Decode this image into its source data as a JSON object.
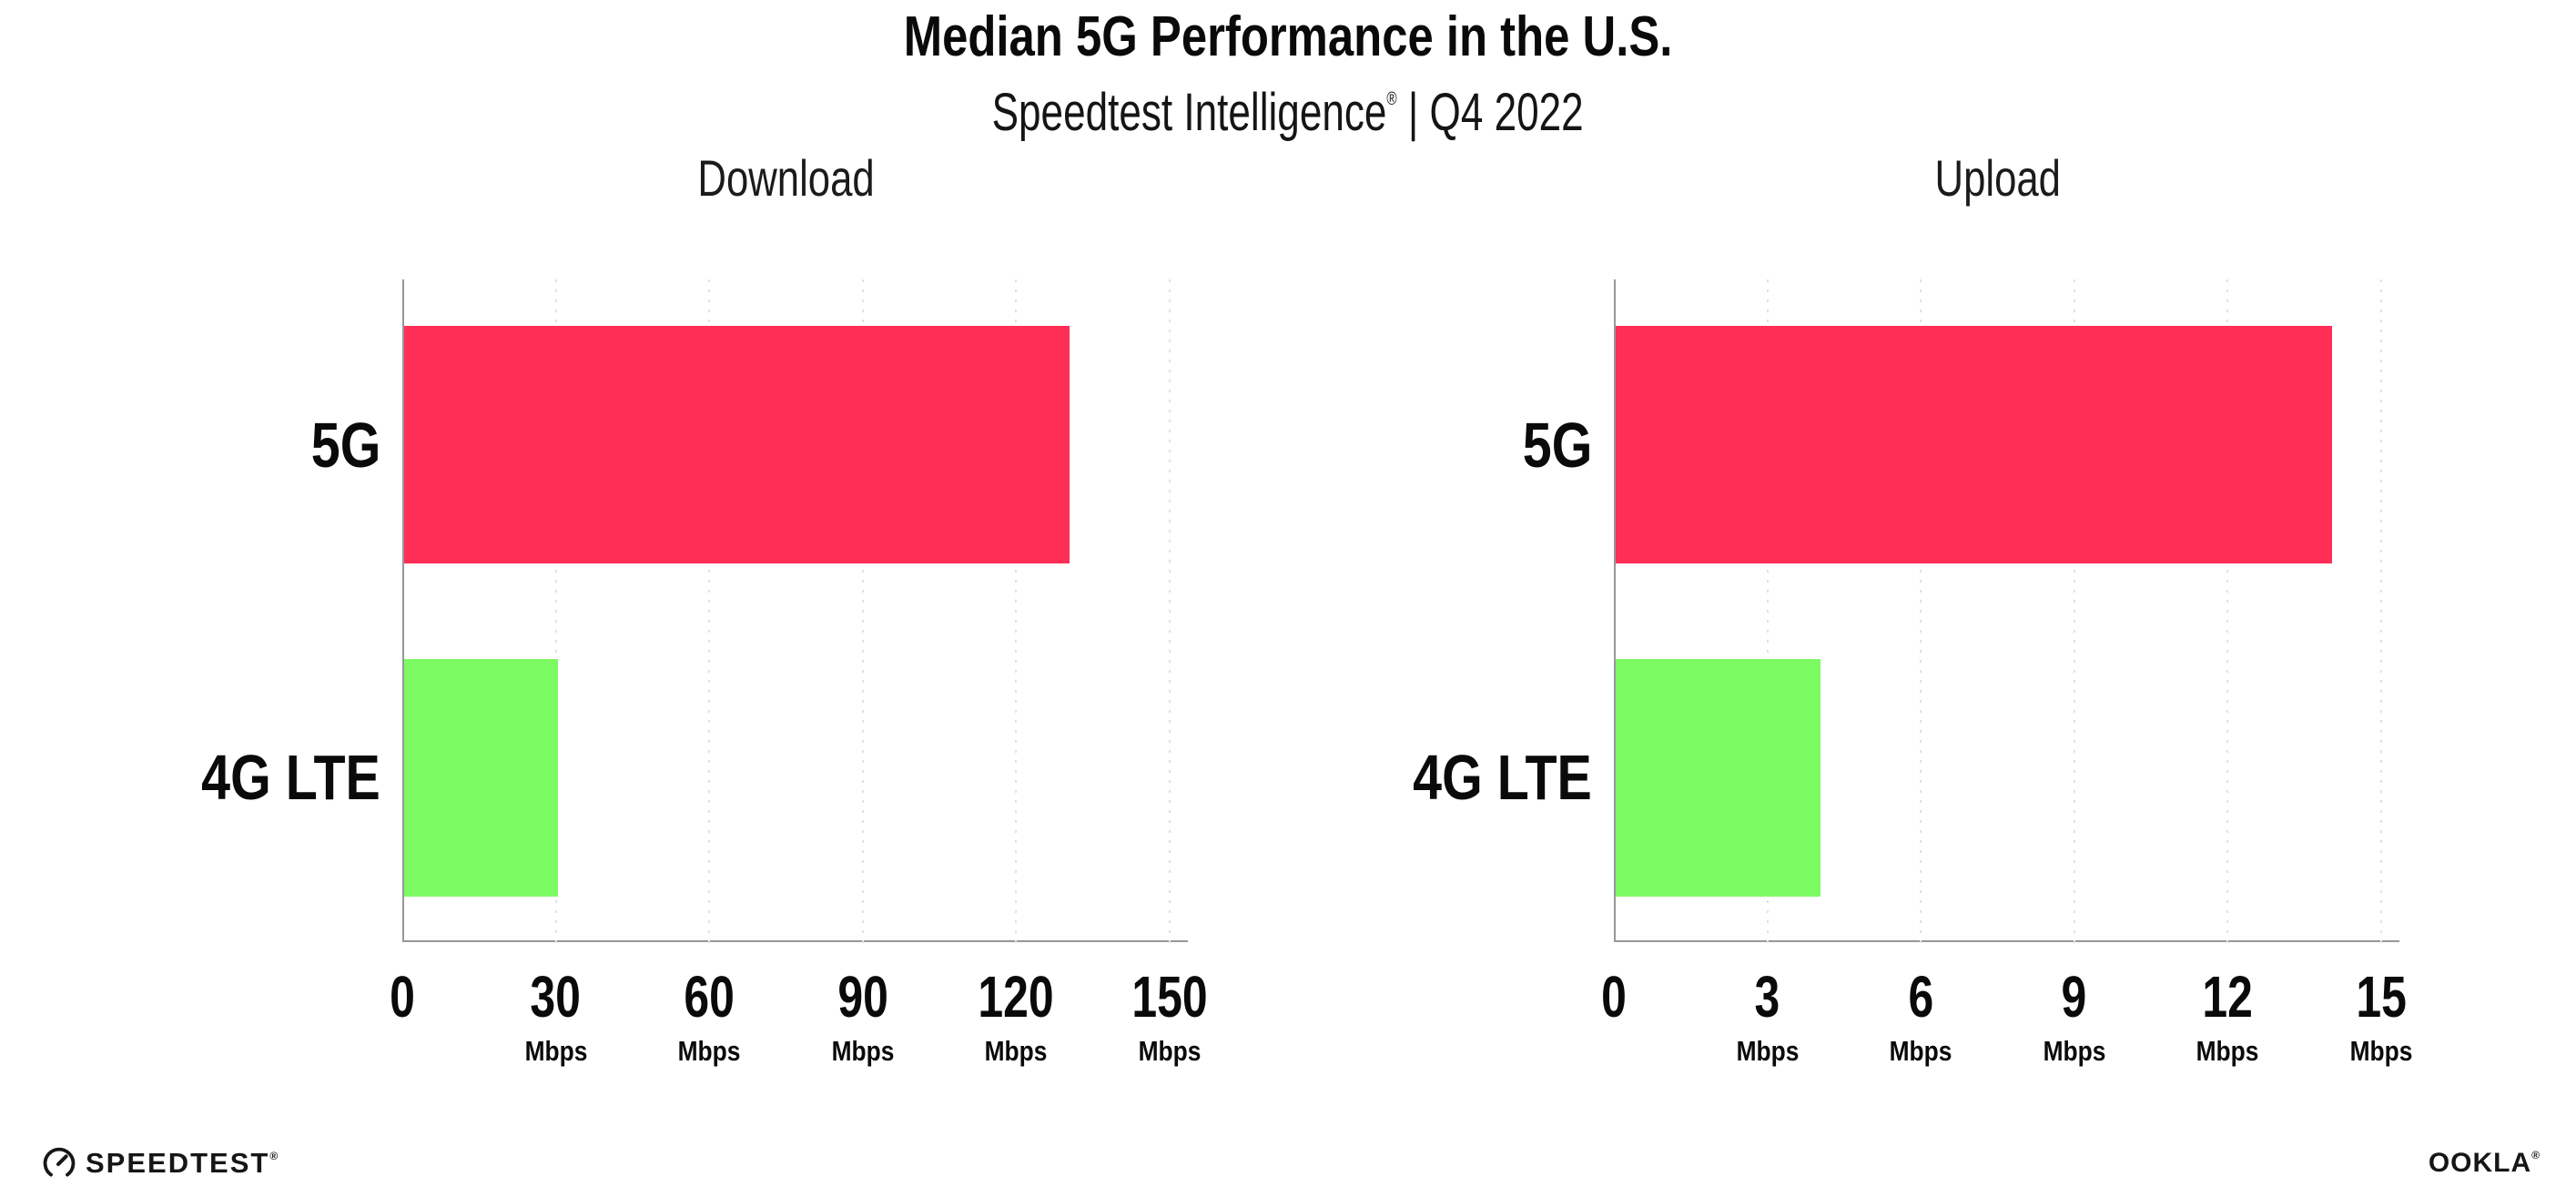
{
  "header": {
    "title": "Median 5G Performance in the U.S.",
    "subtitle": "Speedtest Intelligence",
    "subtitle_mark": "®",
    "subtitle_rest": " | Q4 2022"
  },
  "chart_data": [
    {
      "type": "bar",
      "orientation": "horizontal",
      "title": "Download",
      "categories": [
        "5G",
        "4G LTE"
      ],
      "values": [
        130,
        30
      ],
      "unit": "Mbps",
      "xlim": [
        0,
        150
      ],
      "xticks": [
        0,
        30,
        60,
        90,
        120,
        150
      ],
      "bar_colors": [
        "#FF2E56",
        "#7DFB63"
      ],
      "grid": "vertical-dotted",
      "legend": "none"
    },
    {
      "type": "bar",
      "orientation": "horizontal",
      "title": "Upload",
      "categories": [
        "5G",
        "4G LTE"
      ],
      "values": [
        14,
        4
      ],
      "unit": "Mbps",
      "xlim": [
        0,
        15
      ],
      "xticks": [
        0,
        3,
        6,
        9,
        12,
        15
      ],
      "bar_colors": [
        "#FF2E56",
        "#7DFB63"
      ],
      "grid": "vertical-dotted",
      "legend": "none"
    }
  ],
  "footer": {
    "speedtest_label": "SPEEDTEST",
    "speedtest_mark": "®",
    "ookla_label": "OOKLA",
    "ookla_mark": "®"
  },
  "colors": {
    "bar_5g": "#FF2E56",
    "bar_4g_lte": "#7DFB63",
    "axis": "#97979C",
    "gridline": "#E0E0EB",
    "text": "#0A0A0A"
  }
}
